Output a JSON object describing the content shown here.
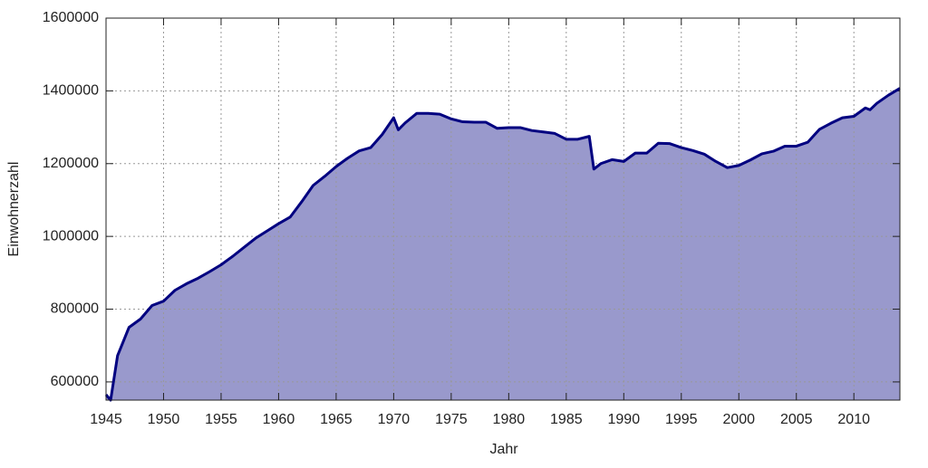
{
  "chart_data": {
    "type": "area",
    "x_label": "Jahr",
    "y_label": "Einwohnerzahl",
    "x": [
      1945,
      1945.4,
      1946,
      1947,
      1948,
      1949,
      1950,
      1951,
      1952,
      1953,
      1954,
      1955,
      1956,
      1957,
      1958,
      1959,
      1960,
      1961,
      1962,
      1963,
      1964,
      1965,
      1966,
      1967,
      1968,
      1969,
      1970,
      1970.4,
      1971,
      1972,
      1973,
      1974,
      1975,
      1976,
      1977,
      1978,
      1979,
      1980,
      1981,
      1982,
      1983,
      1984,
      1985,
      1986,
      1987,
      1987.4,
      1988,
      1989,
      1990,
      1991,
      1992,
      1993,
      1994,
      1995,
      1996,
      1997,
      1998,
      1999,
      2000,
      2001,
      2002,
      2003,
      2004,
      2005,
      2006,
      2007,
      2008,
      2009,
      2010,
      2011,
      2011.4,
      2012,
      2013,
      2014
    ],
    "values": [
      565000,
      550000,
      672000,
      750000,
      773000,
      810000,
      822000,
      852000,
      870000,
      885000,
      903000,
      922000,
      945000,
      970000,
      995000,
      1015000,
      1035000,
      1053000,
      1095000,
      1140000,
      1165000,
      1192000,
      1215000,
      1235000,
      1244000,
      1280000,
      1326000,
      1293000,
      1312000,
      1338000,
      1338000,
      1336000,
      1323000,
      1315000,
      1314000,
      1314000,
      1297000,
      1299000,
      1299000,
      1291000,
      1287000,
      1283000,
      1267000,
      1267000,
      1275000,
      1185000,
      1200000,
      1211000,
      1206000,
      1229000,
      1229000,
      1256000,
      1255000,
      1244000,
      1236000,
      1226000,
      1206000,
      1189000,
      1195000,
      1210000,
      1227000,
      1234000,
      1248000,
      1248000,
      1259000,
      1294000,
      1311000,
      1326000,
      1330000,
      1353000,
      1348000,
      1366000,
      1388000,
      1407000
    ],
    "fill_color": "#9999cc",
    "line_color": "#000080",
    "xlim": [
      1945,
      2014
    ],
    "xticks": [
      1945,
      1950,
      1955,
      1960,
      1965,
      1970,
      1975,
      1980,
      1985,
      1990,
      1995,
      2000,
      2005,
      2010
    ],
    "ylim": [
      550000,
      1600000
    ],
    "yticks": [
      600000,
      800000,
      1000000,
      1200000,
      1400000,
      1600000
    ],
    "grid": true
  }
}
